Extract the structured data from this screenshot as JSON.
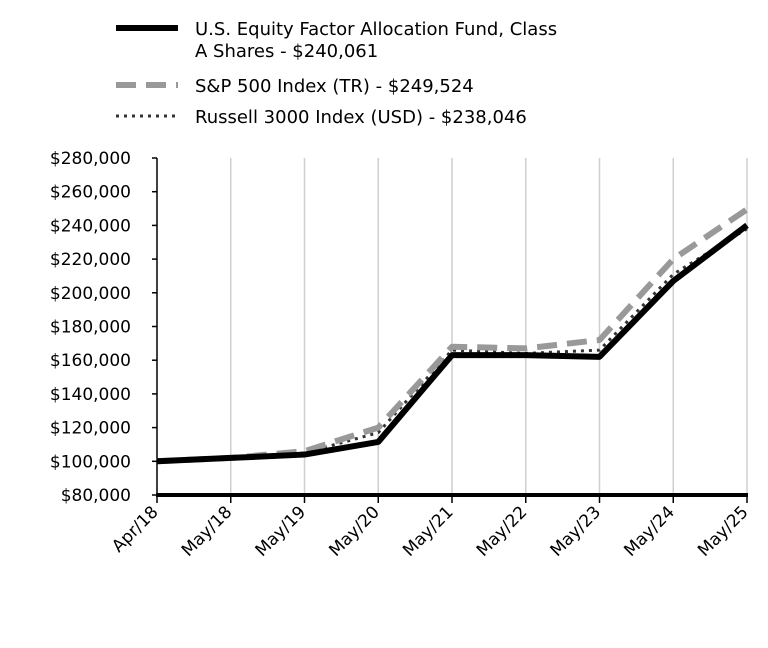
{
  "chart_data": {
    "type": "line",
    "categories": [
      "Apr/18",
      "May/18",
      "May/19",
      "May/20",
      "May/21",
      "May/22",
      "May/23",
      "May/24",
      "May/25"
    ],
    "ylim": [
      80000,
      280000
    ],
    "yticks": [
      "$80,000",
      "$100,000",
      "$120,000",
      "$140,000",
      "$160,000",
      "$180,000",
      "$200,000",
      "$220,000",
      "$240,000",
      "$260,000",
      "$280,000"
    ],
    "ytick_values": [
      80000,
      100000,
      120000,
      140000,
      160000,
      180000,
      200000,
      220000,
      240000,
      260000,
      280000
    ],
    "grid": "vertical",
    "legend_position": "top",
    "series": [
      {
        "name": "U.S. Equity Factor Allocation Fund, Class A Shares - $240,061",
        "name_lines": [
          "U.S. Equity Factor Allocation Fund, Class",
          "A Shares - $240,061"
        ],
        "values": [
          100000,
          102000,
          104000,
          111500,
          163000,
          163000,
          162000,
          207000,
          240061
        ],
        "color": "#000000",
        "style": "solid"
      },
      {
        "name": "S&P 500 Index (TR) - $249,524",
        "name_lines": [
          "S&P 500 Index (TR) - $249,524"
        ],
        "values": [
          100000,
          102000,
          106000,
          120000,
          168000,
          167000,
          172000,
          220000,
          249524
        ],
        "color": "#999999",
        "style": "dashed"
      },
      {
        "name": "Russell 3000 Index (USD) - $238,046",
        "name_lines": [
          "Russell 3000 Index (USD) - $238,046"
        ],
        "values": [
          100000,
          102000,
          105000,
          117000,
          166000,
          164000,
          166000,
          211000,
          238046
        ],
        "color": "#333333",
        "style": "dotted"
      }
    ]
  }
}
